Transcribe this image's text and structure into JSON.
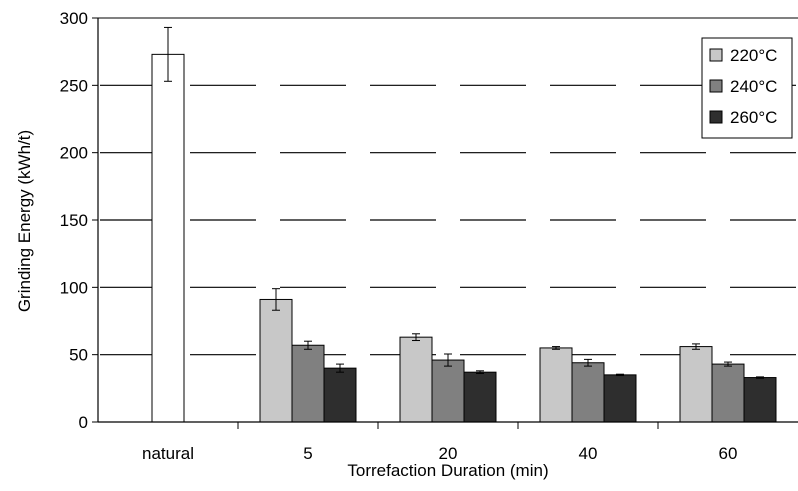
{
  "chart_data": {
    "type": "bar",
    "xlabel": "Torrefaction Duration (min)",
    "ylabel": "Grinding Energy (kWh/t)",
    "ylim": [
      0,
      300
    ],
    "yticks": [
      0,
      50,
      100,
      150,
      200,
      250,
      300
    ],
    "grid": "horizontal dashed",
    "legend_position": "top-right",
    "categories": [
      "natural",
      "5",
      "20",
      "40",
      "60"
    ],
    "natural": {
      "category": "natural",
      "value": 273,
      "error": 20,
      "color": "#ffffff"
    },
    "series": [
      {
        "name": "220°C",
        "color": "#c8c8c8",
        "values": [
          null,
          91,
          63,
          55,
          56
        ],
        "errors": [
          null,
          8,
          2.5,
          1,
          2
        ]
      },
      {
        "name": "240°C",
        "color": "#808080",
        "values": [
          null,
          57,
          46,
          44,
          43
        ],
        "errors": [
          null,
          3,
          4.5,
          2.5,
          1.5
        ]
      },
      {
        "name": "260°C",
        "color": "#2e2e2e",
        "values": [
          null,
          40,
          37,
          35,
          33
        ],
        "errors": [
          null,
          3,
          1,
          0.5,
          0.5
        ]
      }
    ]
  }
}
